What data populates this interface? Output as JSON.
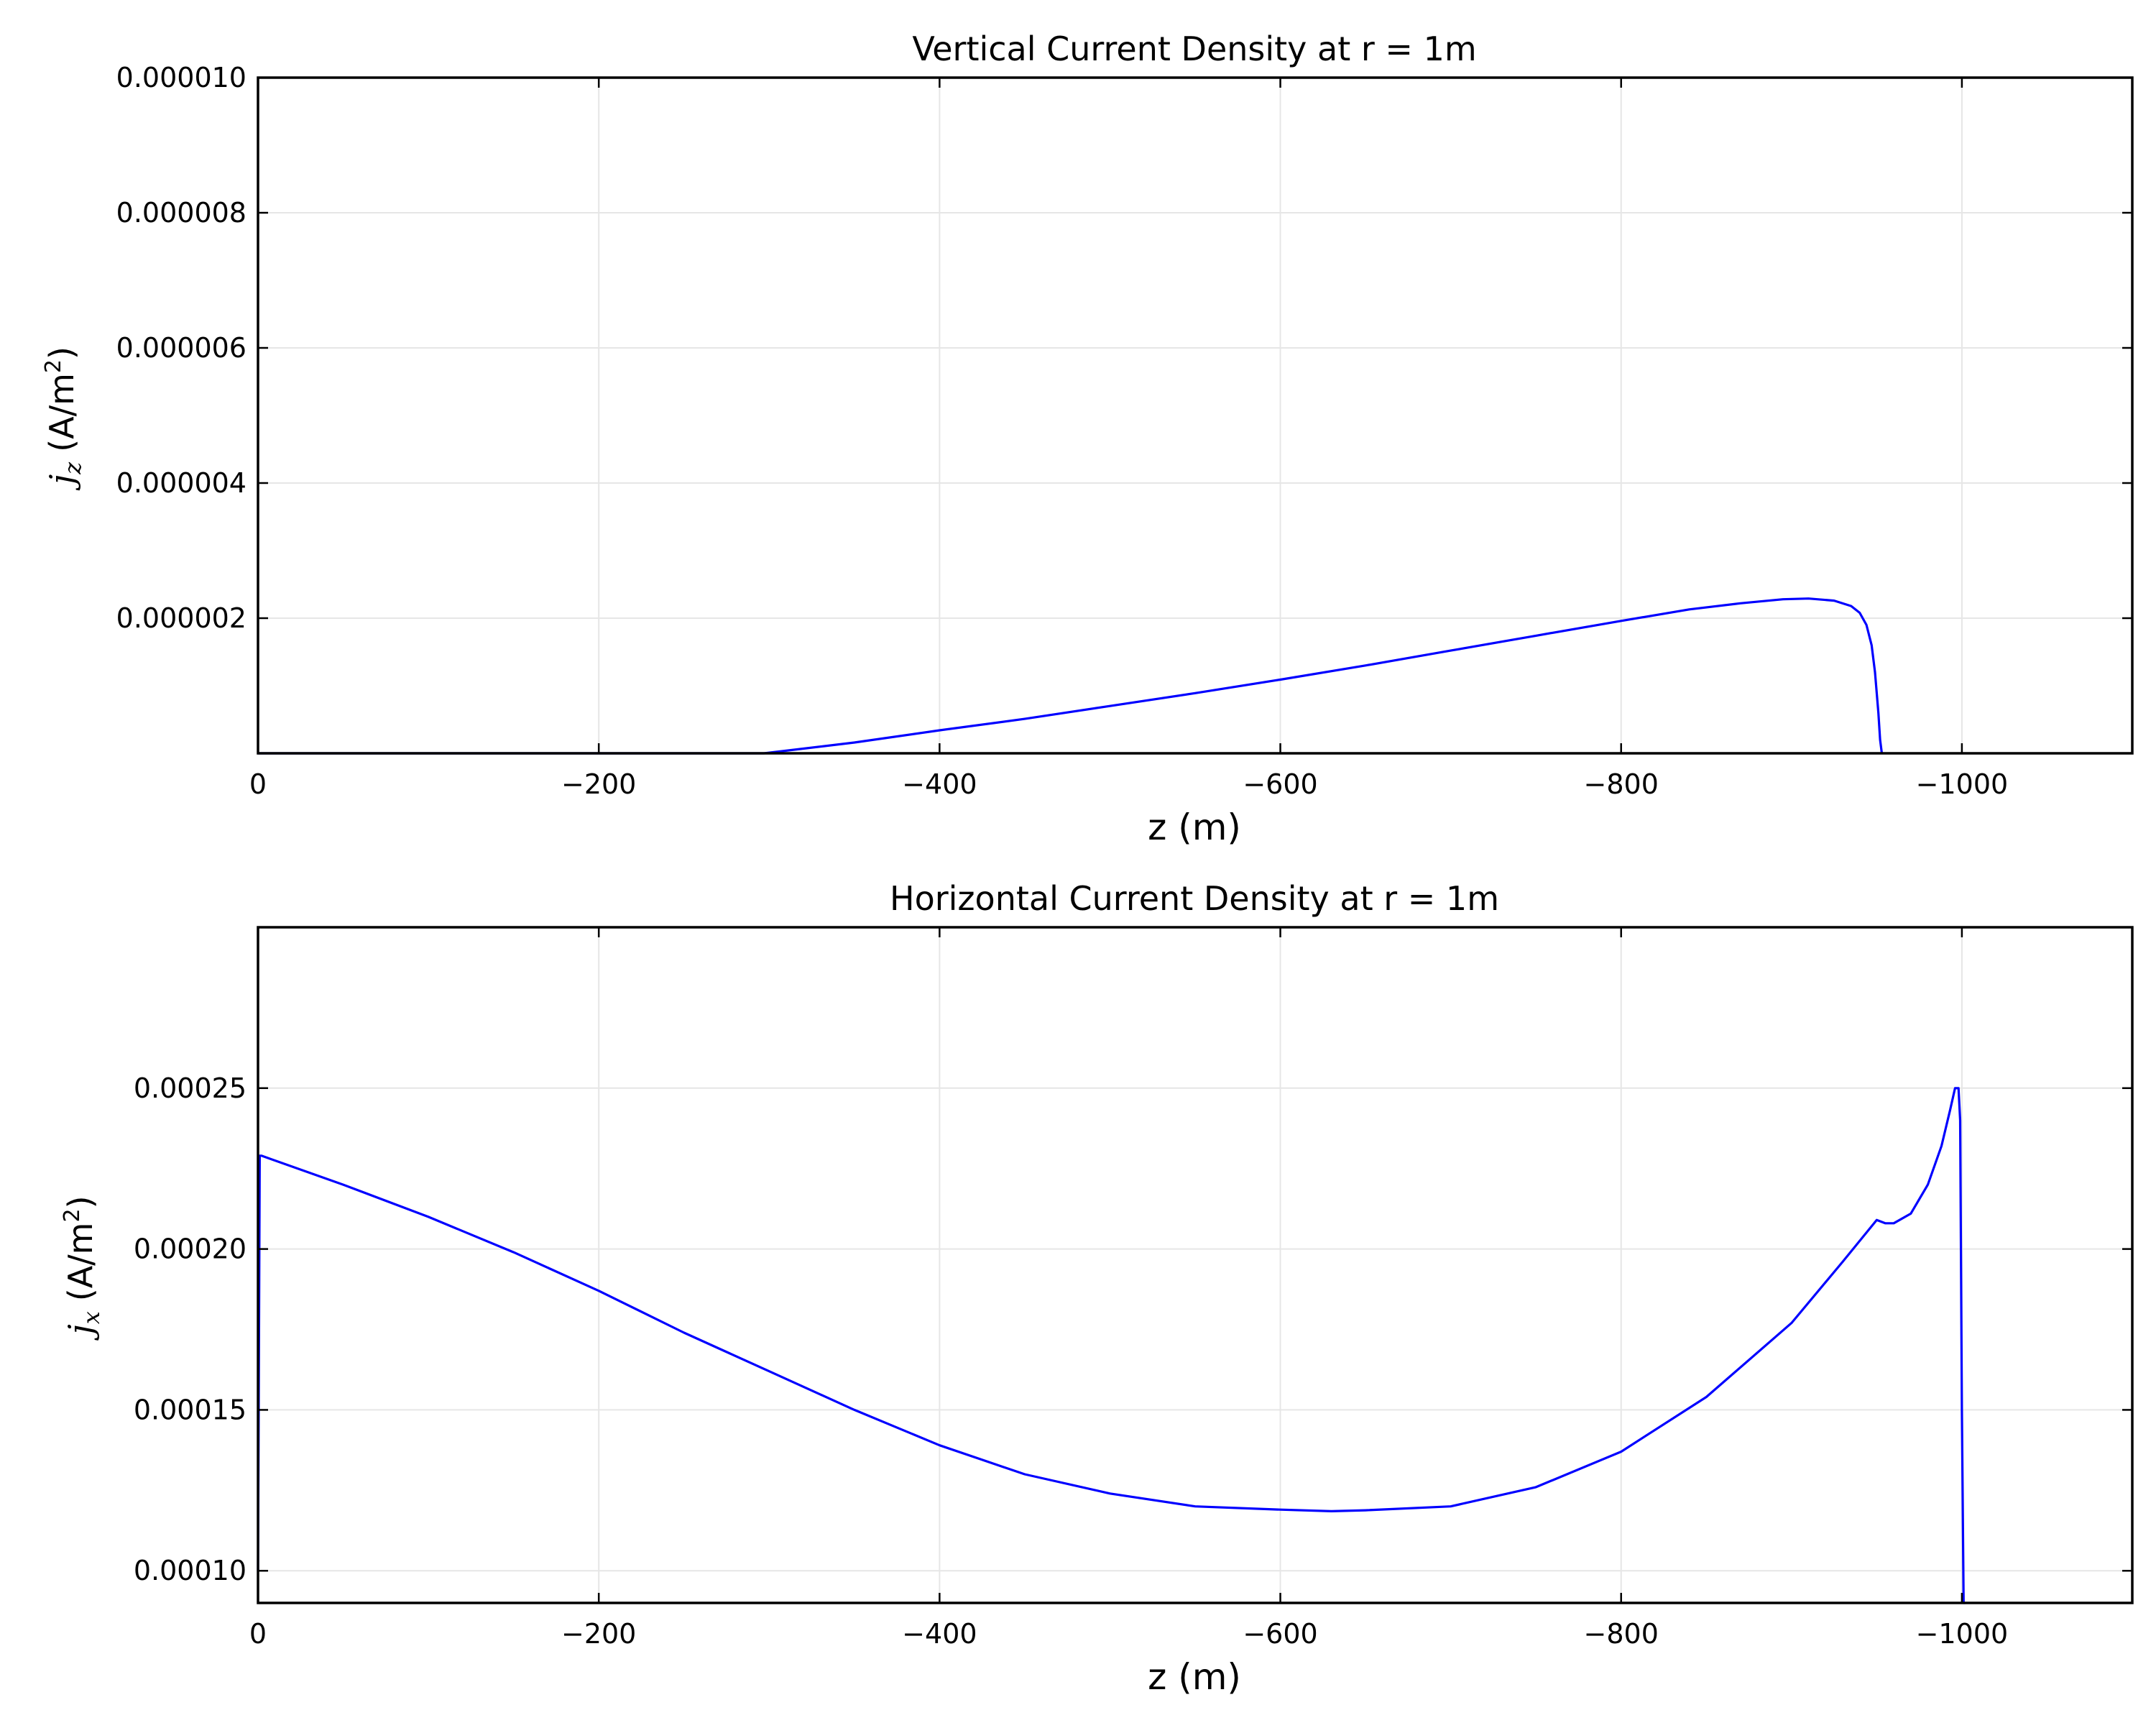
{
  "chart_data": [
    {
      "type": "line",
      "title": "Vertical Current Density at r = 1m",
      "xlabel": "z (m)",
      "ylabel_symbol": "j",
      "ylabel_subscript": "z",
      "ylabel_unit": "(A/m",
      "ylabel_power": "2",
      "ylabel_close": ")",
      "xlim": [
        0,
        -1100
      ],
      "ylim": [
        0,
        1e-05
      ],
      "grid": true,
      "x_ticks": [
        0,
        -200,
        -400,
        -600,
        -800,
        -1000
      ],
      "x_tick_labels": [
        "0",
        "−200",
        "−400",
        "−600",
        "−800",
        "−1000"
      ],
      "y_ticks": [
        2e-06,
        4e-06,
        6e-06,
        8e-06,
        1e-05
      ],
      "y_tick_labels": [
        "0.000002",
        "0.000004",
        "0.000006",
        "0.000008",
        "0.000010"
      ],
      "color": "#0000ff",
      "series": [
        {
          "x": [
            0,
            -100,
            -200,
            -297,
            -350,
            -400,
            -450,
            -500,
            -550,
            -600,
            -650,
            -700,
            -750,
            -800,
            -840,
            -870,
            -895,
            -910,
            -925,
            -935,
            -940,
            -944,
            -947,
            -949,
            -951,
            -952,
            -953
          ],
          "y": [
            0,
            0,
            0,
            0,
            1.6e-07,
            3.4e-07,
            5.1e-07,
            7e-07,
            8.9e-07,
            1.09e-06,
            1.3e-06,
            1.52e-06,
            1.74e-06,
            1.96e-06,
            2.13e-06,
            2.22e-06,
            2.28e-06,
            2.29e-06,
            2.26e-06,
            2.18e-06,
            2.08e-06,
            1.9e-06,
            1.6e-06,
            1.2e-06,
            6e-07,
            2e-07,
            0
          ]
        }
      ]
    },
    {
      "type": "line",
      "title": "Horizontal Current Density at r = 1m",
      "xlabel": "z (m)",
      "ylabel_symbol": "j",
      "ylabel_subscript": "x",
      "ylabel_unit": "(A/m",
      "ylabel_power": "2",
      "ylabel_close": ")",
      "xlim": [
        0,
        -1100
      ],
      "ylim": [
        9e-05,
        0.0003
      ],
      "grid": true,
      "x_ticks": [
        0,
        -200,
        -400,
        -600,
        -800,
        -1000
      ],
      "x_tick_labels": [
        "0",
        "−200",
        "−400",
        "−600",
        "−800",
        "−1000"
      ],
      "y_ticks": [
        0.0001,
        0.00015,
        0.0002,
        0.00025
      ],
      "y_tick_labels": [
        "0.00010",
        "0.00015",
        "0.00020",
        "0.00025"
      ],
      "color": "#0000ff",
      "series": [
        {
          "x": [
            0,
            -1,
            -2,
            -50,
            -100,
            -150,
            -200,
            -250,
            -300,
            -350,
            -400,
            -450,
            -500,
            -550,
            -600,
            -630,
            -650,
            -700,
            -750,
            -800,
            -850,
            -900,
            -930,
            -950,
            -955,
            -960,
            -970,
            -980,
            -988,
            -993,
            -996,
            -998,
            -999,
            -1000,
            -1001,
            -1002
          ],
          "y": [
            0.0001,
            0.000229,
            0.000229,
            0.00022,
            0.00021,
            0.000199,
            0.000187,
            0.000174,
            0.000162,
            0.00015,
            0.000139,
            0.00013,
            0.000124,
            0.00012,
            0.000119,
            0.0001185,
            0.0001188,
            0.00012,
            0.000126,
            0.000137,
            0.000154,
            0.000177,
            0.000196,
            0.000209,
            0.000208,
            0.000208,
            0.000211,
            0.00022,
            0.000232,
            0.000243,
            0.00025,
            0.00025,
            0.00024,
            0.00015,
            9e-05,
            9e-05
          ]
        }
      ]
    }
  ]
}
